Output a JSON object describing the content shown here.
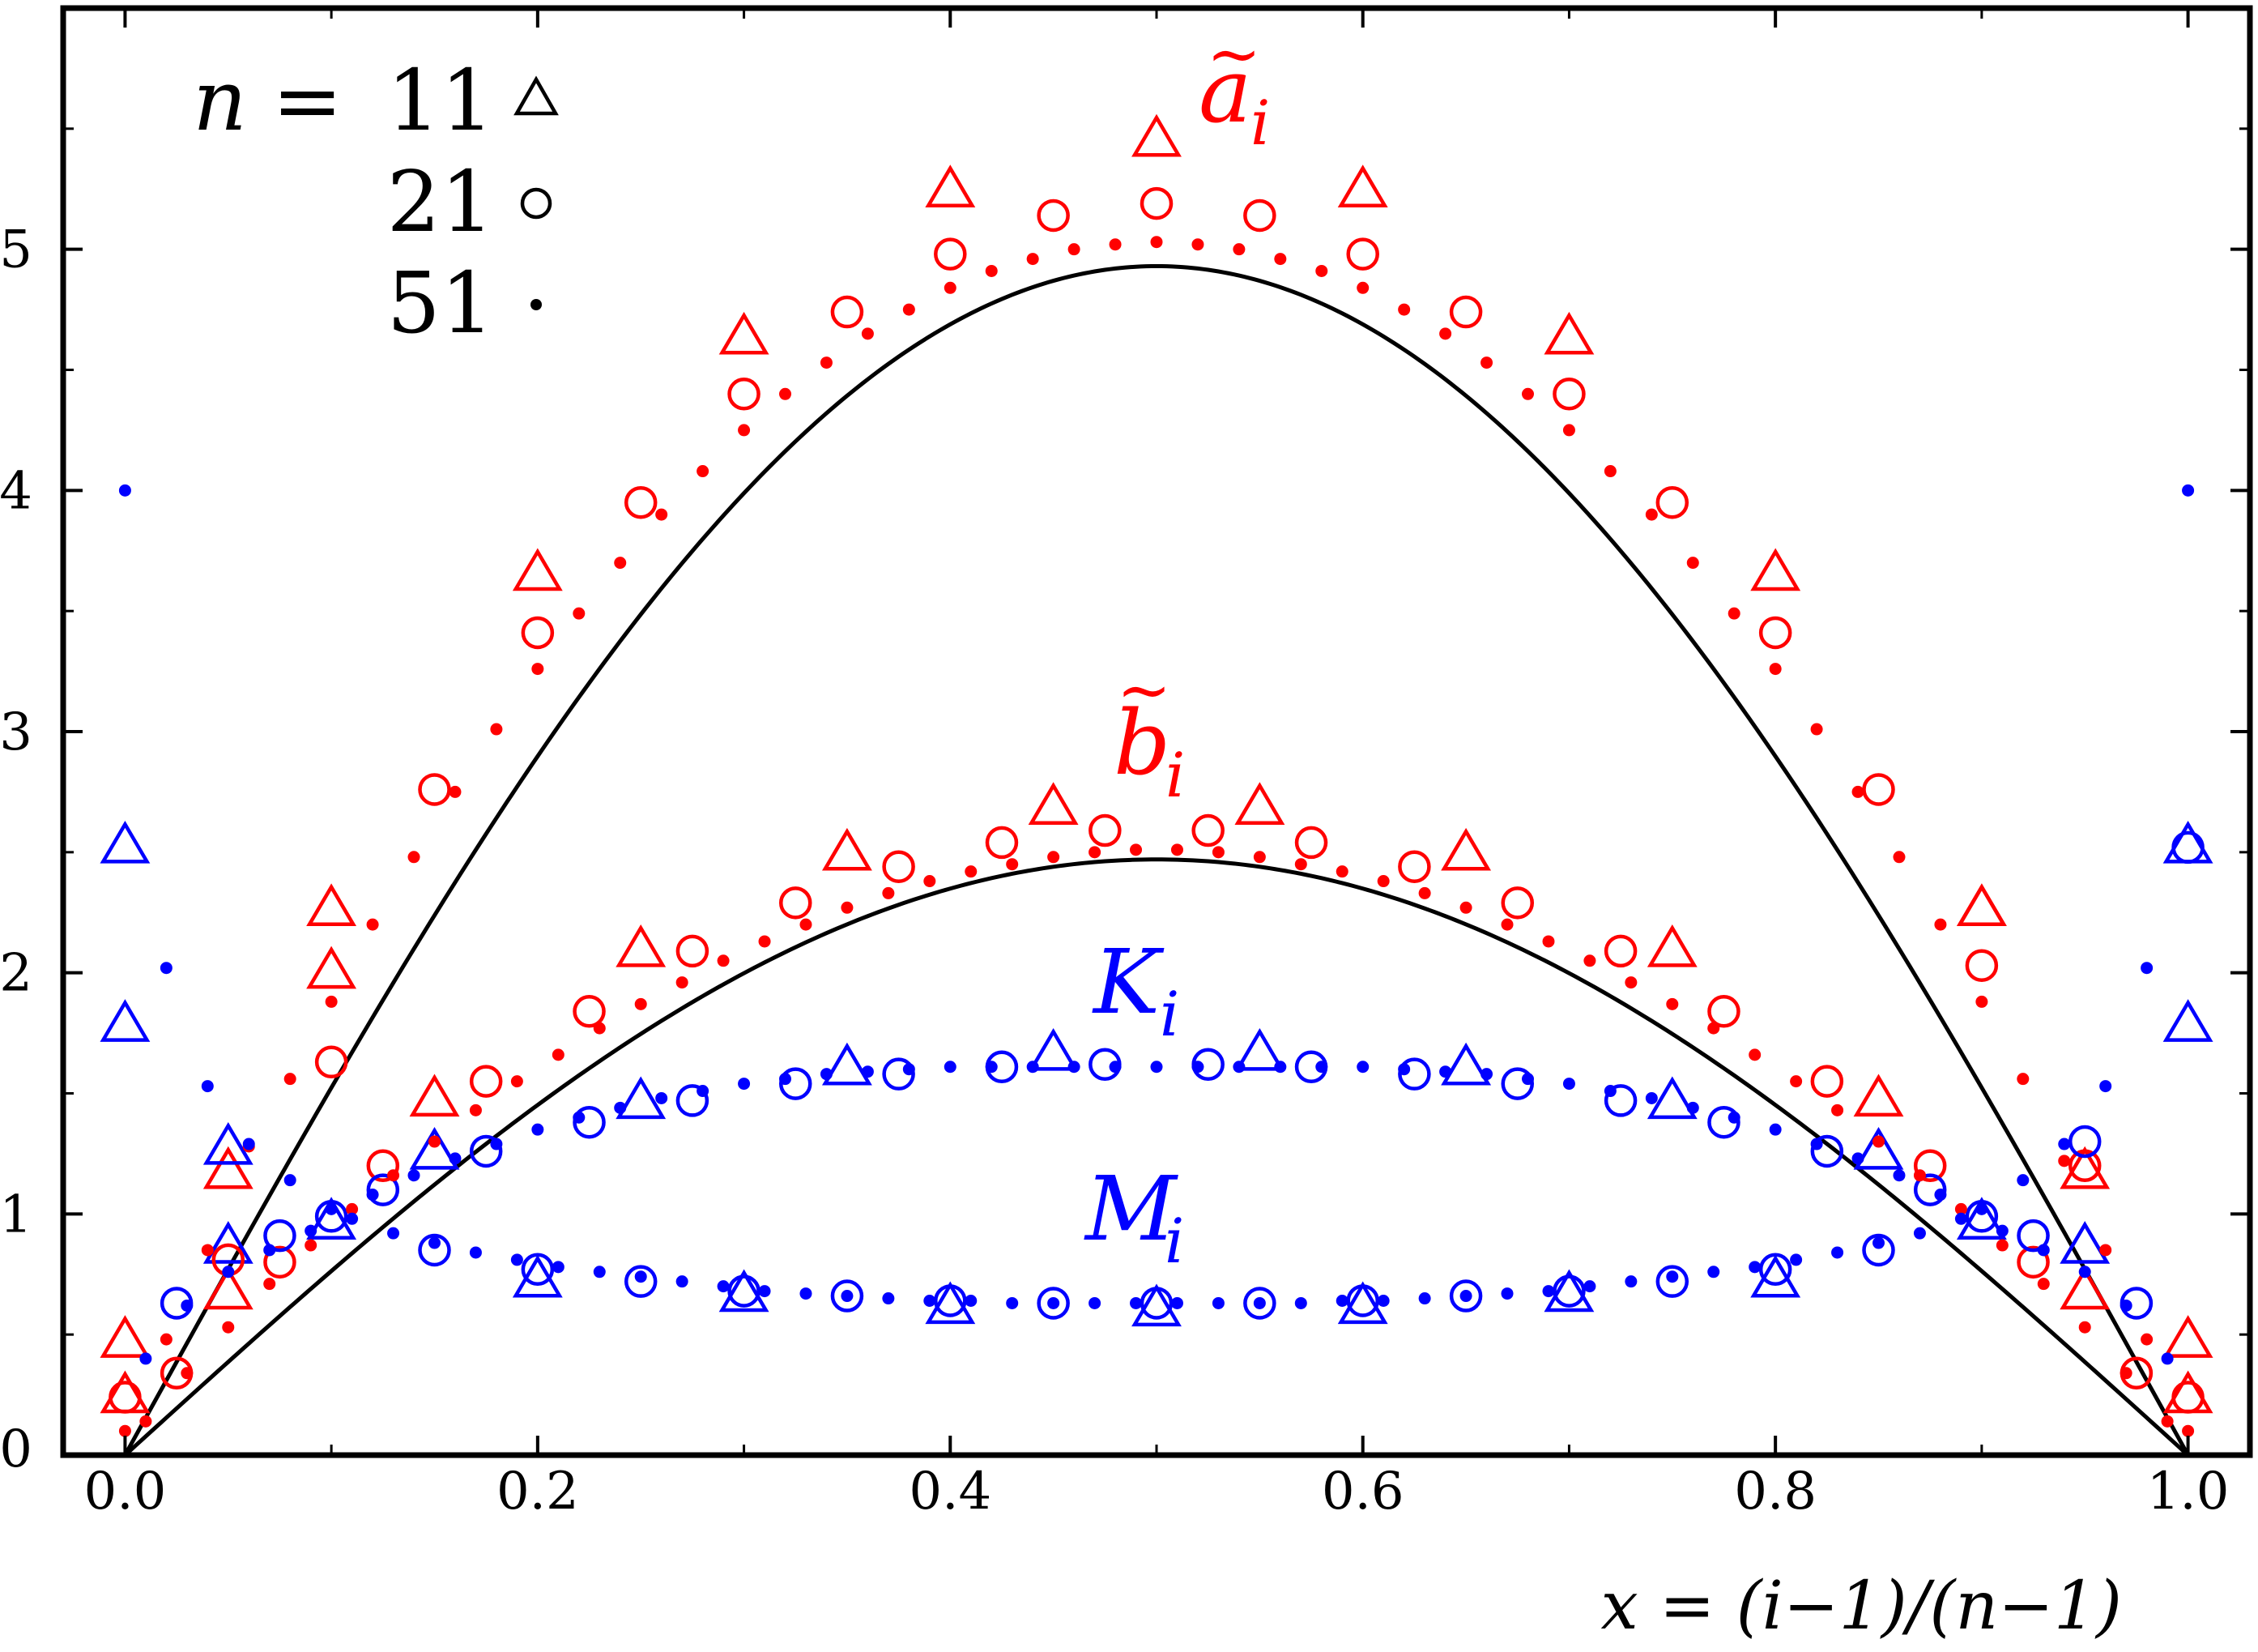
{
  "chart_data": {
    "type": "scatter",
    "title": "",
    "xlabel": "x = (i−1)/(n−1)",
    "ylabel": "",
    "xlim": [
      -0.03,
      1.03
    ],
    "ylim": [
      0,
      6.0
    ],
    "xticks": [
      {
        "value": 0.0,
        "label": "0.0"
      },
      {
        "value": 0.2,
        "label": "0.2"
      },
      {
        "value": 0.4,
        "label": "0.4"
      },
      {
        "value": 0.6,
        "label": "0.6"
      },
      {
        "value": 0.8,
        "label": "0.8"
      },
      {
        "value": 1.0,
        "label": "1.0"
      }
    ],
    "yticks": [
      {
        "value": 0,
        "label": "0"
      },
      {
        "value": 1,
        "label": "1"
      },
      {
        "value": 2,
        "label": "2"
      },
      {
        "value": 3,
        "label": "3"
      },
      {
        "value": 4,
        "label": "4"
      },
      {
        "value": 5,
        "label": "5"
      }
    ],
    "grid": false,
    "colors": {
      "a": "#ff0000",
      "b": "#ff0000",
      "K": "#0000ff",
      "M": "#0000ff",
      "curve": "#000000",
      "axes": "#000000"
    },
    "legend": {
      "placement": "top-left",
      "title": "n",
      "entries": [
        {
          "value": "11",
          "marker": "triangle"
        },
        {
          "value": "21",
          "marker": "circle"
        },
        {
          "value": "51",
          "marker": "dot"
        }
      ]
    },
    "series_labels": [
      {
        "key": "a",
        "base": "a",
        "accent": "~",
        "subscript": "i",
        "color": "#ff0000"
      },
      {
        "key": "b",
        "base": "b",
        "accent": "~",
        "subscript": "i",
        "color": "#ff0000"
      },
      {
        "key": "K",
        "base": "K",
        "accent": "",
        "subscript": "i",
        "color": "#0000ff"
      },
      {
        "key": "M",
        "base": "M",
        "accent": "",
        "subscript": "i",
        "color": "#0000ff"
      }
    ],
    "curves": [
      {
        "key": "a",
        "peak": 4.93
      },
      {
        "key": "b",
        "peak": 2.47
      }
    ],
    "series": [
      {
        "key": "a",
        "n": 11,
        "marker": "triangle",
        "color": "#ff0000",
        "x": [
          0.0,
          0.1,
          0.2,
          0.3,
          0.4,
          0.5,
          0.6,
          0.7,
          0.8,
          0.9,
          1.0
        ],
        "y": [
          0.47,
          2.26,
          3.65,
          4.63,
          5.24,
          5.45,
          5.24,
          4.63,
          3.65,
          2.26,
          0.47
        ]
      },
      {
        "key": "b",
        "n": 11,
        "marker": "triangle",
        "color": "#ff0000",
        "x": [
          0.0,
          0.05,
          0.15,
          0.25,
          0.35,
          0.45,
          0.55,
          0.65,
          0.75,
          0.85,
          0.95,
          1.0
        ],
        "y": [
          0.24,
          0.67,
          1.47,
          2.09,
          2.49,
          2.68,
          2.68,
          2.49,
          2.09,
          1.47,
          0.67,
          0.24
        ]
      },
      {
        "key": "b2",
        "n": 11,
        "marker": "triangle",
        "color": "#ff0000",
        "x": [
          0.05,
          0.1,
          0.9,
          0.95
        ],
        "y": [
          1.17,
          2.0,
          2.26,
          1.17
        ]
      },
      {
        "key": "K",
        "n": 11,
        "marker": "triangle",
        "color": "#0000ff",
        "x": [
          0.0,
          0.05,
          0.15,
          0.25,
          0.35,
          0.45,
          0.55,
          0.65,
          0.75,
          0.85,
          0.95,
          1.0
        ],
        "y": [
          2.52,
          1.27,
          1.25,
          1.46,
          1.6,
          1.66,
          1.66,
          1.6,
          1.46,
          1.25,
          0.86,
          1.78
        ]
      },
      {
        "key": "M",
        "n": 11,
        "marker": "triangle",
        "color": "#0000ff",
        "x": [
          0.0,
          0.05,
          0.1,
          0.2,
          0.3,
          0.4,
          0.5,
          0.6,
          0.7,
          0.8,
          0.9,
          1.0
        ],
        "y": [
          1.78,
          0.86,
          0.96,
          0.72,
          0.66,
          0.61,
          0.6,
          0.61,
          0.66,
          0.72,
          0.96,
          2.52
        ]
      },
      {
        "key": "a",
        "n": 21,
        "marker": "circle",
        "color": "#ff0000",
        "x": [
          0.0,
          0.05,
          0.1,
          0.15,
          0.2,
          0.25,
          0.3,
          0.35,
          0.4,
          0.45,
          0.5,
          0.55,
          0.6,
          0.65,
          0.7,
          0.75,
          0.8,
          0.85,
          0.9,
          0.95,
          1.0
        ],
        "y": [
          0.24,
          0.81,
          1.63,
          2.76,
          3.41,
          3.95,
          4.4,
          4.74,
          4.98,
          5.14,
          5.19,
          5.14,
          4.98,
          4.74,
          4.4,
          3.95,
          3.41,
          2.76,
          2.03,
          1.2,
          0.24
        ]
      },
      {
        "key": "b",
        "n": 21,
        "marker": "circle",
        "color": "#ff0000",
        "x": [
          0.025,
          0.075,
          0.125,
          0.175,
          0.225,
          0.275,
          0.325,
          0.375,
          0.425,
          0.475,
          0.525,
          0.575,
          0.625,
          0.675,
          0.725,
          0.775,
          0.825,
          0.875,
          0.925,
          0.975
        ],
        "y": [
          0.34,
          0.8,
          1.2,
          1.55,
          1.84,
          2.09,
          2.29,
          2.44,
          2.54,
          2.59,
          2.59,
          2.54,
          2.44,
          2.29,
          2.09,
          1.84,
          1.55,
          1.2,
          0.8,
          0.34
        ]
      },
      {
        "key": "K",
        "n": 21,
        "marker": "circle",
        "color": "#0000ff",
        "x": [
          0.025,
          0.075,
          0.125,
          0.175,
          0.225,
          0.275,
          0.325,
          0.375,
          0.425,
          0.475,
          0.525,
          0.575,
          0.625,
          0.675,
          0.725,
          0.775,
          0.825,
          0.875,
          0.925,
          0.975,
          1.0
        ],
        "y": [
          0.63,
          0.91,
          1.1,
          1.26,
          1.38,
          1.47,
          1.54,
          1.58,
          1.61,
          1.62,
          1.62,
          1.61,
          1.58,
          1.54,
          1.47,
          1.38,
          1.26,
          1.1,
          0.91,
          0.63,
          2.52
        ]
      },
      {
        "key": "M",
        "n": 21,
        "marker": "circle",
        "color": "#0000ff",
        "x": [
          0.1,
          0.15,
          0.2,
          0.25,
          0.3,
          0.35,
          0.4,
          0.45,
          0.5,
          0.55,
          0.6,
          0.65,
          0.7,
          0.75,
          0.8,
          0.85,
          0.9,
          0.95
        ],
        "y": [
          0.99,
          0.85,
          0.77,
          0.72,
          0.68,
          0.66,
          0.64,
          0.63,
          0.63,
          0.63,
          0.64,
          0.66,
          0.68,
          0.72,
          0.77,
          0.85,
          0.99,
          1.3
        ]
      },
      {
        "key": "a",
        "n": 51,
        "marker": "dot",
        "color": "#ff0000",
        "x": [
          0.0,
          0.02,
          0.04,
          0.06,
          0.08,
          0.1,
          0.12,
          0.14,
          0.16,
          0.18,
          0.2,
          0.22,
          0.24,
          0.26,
          0.28,
          0.3,
          0.32,
          0.34,
          0.36,
          0.38,
          0.4,
          0.42,
          0.44,
          0.46,
          0.48,
          0.5,
          0.52,
          0.54,
          0.56,
          0.58,
          0.6,
          0.62,
          0.64,
          0.66,
          0.68,
          0.7,
          0.72,
          0.74,
          0.76,
          0.78,
          0.8,
          0.82,
          0.84,
          0.86,
          0.88,
          0.9,
          0.92,
          0.94,
          0.96,
          0.98,
          1.0
        ],
        "y": [
          0.1,
          0.48,
          0.85,
          1.28,
          1.56,
          1.88,
          2.2,
          2.48,
          2.75,
          3.01,
          3.26,
          3.49,
          3.7,
          3.9,
          4.08,
          4.25,
          4.4,
          4.53,
          4.65,
          4.75,
          4.84,
          4.91,
          4.96,
          5.0,
          5.02,
          5.03,
          5.02,
          5.0,
          4.96,
          4.91,
          4.84,
          4.75,
          4.65,
          4.53,
          4.4,
          4.25,
          4.08,
          3.9,
          3.7,
          3.49,
          3.26,
          3.01,
          2.75,
          2.48,
          2.2,
          1.88,
          1.56,
          1.22,
          0.85,
          0.48,
          0.1
        ]
      },
      {
        "key": "b",
        "n": 51,
        "marker": "dot",
        "color": "#ff0000",
        "x": [
          0.01,
          0.03,
          0.05,
          0.07,
          0.09,
          0.11,
          0.13,
          0.15,
          0.17,
          0.19,
          0.21,
          0.23,
          0.25,
          0.27,
          0.29,
          0.31,
          0.33,
          0.35,
          0.37,
          0.39,
          0.41,
          0.43,
          0.45,
          0.47,
          0.49,
          0.51,
          0.53,
          0.55,
          0.57,
          0.59,
          0.61,
          0.63,
          0.65,
          0.67,
          0.69,
          0.71,
          0.73,
          0.75,
          0.77,
          0.79,
          0.81,
          0.83,
          0.85,
          0.87,
          0.89,
          0.91,
          0.93,
          0.95,
          0.97,
          0.99
        ],
        "y": [
          0.14,
          0.34,
          0.53,
          0.71,
          0.87,
          1.02,
          1.16,
          1.3,
          1.43,
          1.55,
          1.66,
          1.77,
          1.87,
          1.96,
          2.05,
          2.13,
          2.2,
          2.27,
          2.33,
          2.38,
          2.42,
          2.45,
          2.48,
          2.5,
          2.51,
          2.51,
          2.5,
          2.48,
          2.45,
          2.42,
          2.38,
          2.33,
          2.27,
          2.2,
          2.13,
          2.05,
          1.96,
          1.87,
          1.77,
          1.66,
          1.55,
          1.43,
          1.3,
          1.16,
          1.02,
          0.87,
          0.71,
          0.53,
          0.34,
          0.14
        ]
      },
      {
        "key": "K",
        "n": 51,
        "marker": "dot",
        "color": "#0000ff",
        "x": [
          0.0,
          0.02,
          0.04,
          0.06,
          0.08,
          0.1,
          0.12,
          0.14,
          0.16,
          0.18,
          0.2,
          0.22,
          0.24,
          0.26,
          0.28,
          0.3,
          0.32,
          0.34,
          0.36,
          0.38,
          0.4,
          0.42,
          0.44,
          0.46,
          0.48,
          0.5,
          0.52,
          0.54,
          0.56,
          0.58,
          0.6,
          0.62,
          0.64,
          0.66,
          0.68,
          0.7,
          0.72,
          0.74,
          0.76,
          0.78,
          0.8,
          0.82,
          0.84,
          0.86,
          0.88,
          0.9,
          0.92,
          0.94,
          0.96,
          0.98,
          1.0
        ],
        "y": [
          4.0,
          2.02,
          1.53,
          1.29,
          1.14,
          1.02,
          1.08,
          1.16,
          1.23,
          1.29,
          1.35,
          1.4,
          1.44,
          1.48,
          1.51,
          1.54,
          1.56,
          1.58,
          1.59,
          1.6,
          1.61,
          1.61,
          1.61,
          1.61,
          1.61,
          1.61,
          1.61,
          1.61,
          1.61,
          1.61,
          1.61,
          1.6,
          1.59,
          1.58,
          1.56,
          1.54,
          1.51,
          1.48,
          1.44,
          1.4,
          1.35,
          1.29,
          1.23,
          1.16,
          1.08,
          1.02,
          1.14,
          1.29,
          1.53,
          2.02,
          4.0
        ]
      },
      {
        "key": "M",
        "n": 51,
        "marker": "dot",
        "color": "#0000ff",
        "x": [
          0.01,
          0.03,
          0.05,
          0.07,
          0.09,
          0.11,
          0.13,
          0.15,
          0.17,
          0.19,
          0.21,
          0.23,
          0.25,
          0.27,
          0.29,
          0.31,
          0.33,
          0.35,
          0.37,
          0.39,
          0.41,
          0.43,
          0.45,
          0.47,
          0.49,
          0.51,
          0.53,
          0.55,
          0.57,
          0.59,
          0.61,
          0.63,
          0.65,
          0.67,
          0.69,
          0.71,
          0.73,
          0.75,
          0.77,
          0.79,
          0.81,
          0.83,
          0.85,
          0.87,
          0.89,
          0.91,
          0.93,
          0.95,
          0.97,
          0.99
        ],
        "y": [
          0.4,
          0.62,
          0.76,
          0.85,
          0.93,
          0.98,
          0.92,
          0.88,
          0.84,
          0.81,
          0.78,
          0.76,
          0.74,
          0.72,
          0.7,
          0.68,
          0.67,
          0.66,
          0.65,
          0.64,
          0.64,
          0.63,
          0.63,
          0.63,
          0.63,
          0.63,
          0.63,
          0.63,
          0.63,
          0.64,
          0.64,
          0.65,
          0.66,
          0.67,
          0.68,
          0.7,
          0.72,
          0.74,
          0.76,
          0.78,
          0.81,
          0.84,
          0.88,
          0.92,
          0.98,
          0.93,
          0.85,
          0.76,
          0.62,
          0.4
        ]
      }
    ]
  }
}
